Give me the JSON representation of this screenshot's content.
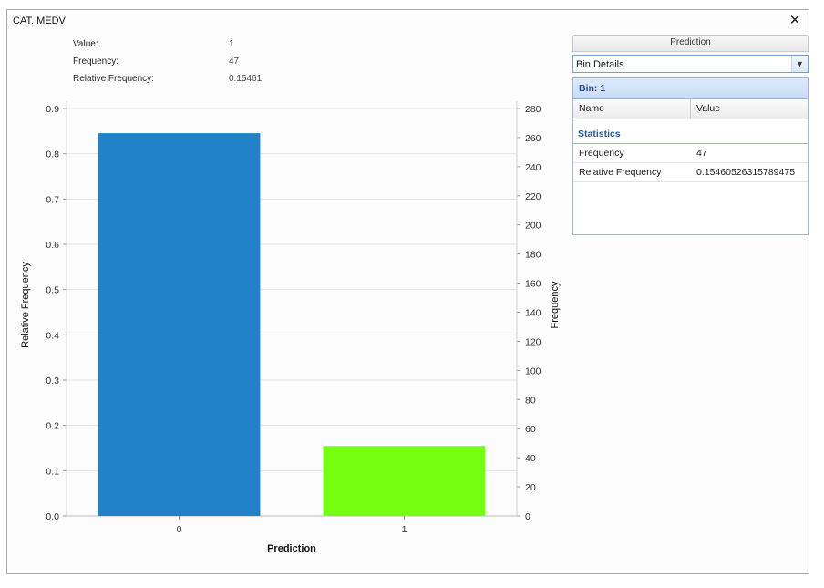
{
  "window": {
    "title": "CAT. MEDV",
    "close_glyph": "✕"
  },
  "hover": {
    "value_label": "Value:",
    "value": "1",
    "frequency_label": "Frequency:",
    "frequency": "47",
    "relfreq_label": "Relative Frequency:",
    "relfreq": "0.15461"
  },
  "chart_data": {
    "type": "bar",
    "categories": [
      "0",
      "1"
    ],
    "values": [
      0.8454,
      0.15461
    ],
    "frequencies": [
      257,
      47
    ],
    "colors": [
      "#2181c9",
      "#74fe10"
    ],
    "xlabel": "Prediction",
    "ylabel": "Relative Frequency",
    "y2label": "Frequency",
    "ylim": [
      0,
      0.9
    ],
    "y2lim": [
      0,
      280
    ],
    "yticks": [
      "0.0",
      "0.1",
      "0.2",
      "0.3",
      "0.4",
      "0.5",
      "0.6",
      "0.7",
      "0.8",
      "0.9"
    ],
    "y2ticks": [
      "0",
      "20",
      "40",
      "60",
      "80",
      "100",
      "120",
      "140",
      "160",
      "180",
      "200",
      "220",
      "240",
      "260",
      "280"
    ],
    "grid": true
  },
  "panel": {
    "header": "Prediction",
    "selected_view": "Bin Details",
    "bin_label": "Bin: 1",
    "col_name": "Name",
    "col_value": "Value",
    "section": "Statistics",
    "rows": [
      {
        "name": "Frequency",
        "value": "47"
      },
      {
        "name": "Relative Frequency",
        "value": "0.15460526315789475"
      }
    ]
  }
}
